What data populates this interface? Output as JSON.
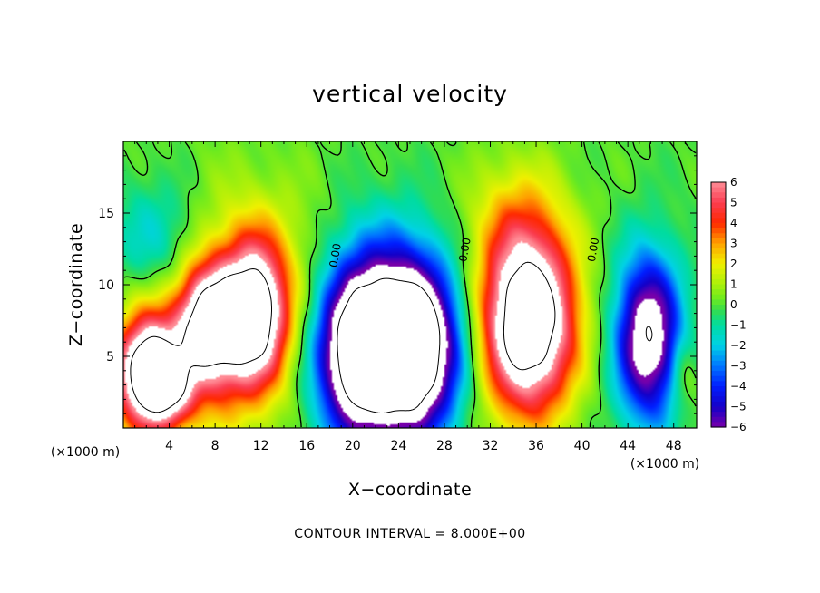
{
  "chart_data": {
    "type": "heatmap",
    "title": "vertical velocity",
    "xlabel": "X−coordinate",
    "ylabel": "Z−coordinate",
    "x_unit": "(×1000 m)",
    "x_unit_right": "(×1000 m)",
    "xlim": [
      0,
      50
    ],
    "ylim": [
      0,
      20
    ],
    "x_ticks": [
      4,
      8,
      12,
      16,
      20,
      24,
      28,
      32,
      36,
      40,
      44,
      48
    ],
    "x_tick_labels": [
      "4",
      "8",
      "12",
      "16",
      "20",
      "24",
      "28",
      "32",
      "36",
      "40",
      "44",
      "48"
    ],
    "y_ticks": [
      5,
      10,
      15
    ],
    "y_tick_labels": [
      "5",
      "10",
      "15"
    ],
    "colorbar": {
      "min": -6,
      "max": 6,
      "tick_values": [
        6,
        5,
        4,
        3,
        2,
        1,
        0,
        -1,
        -2,
        -3,
        -4,
        -5,
        -6
      ],
      "tick_labels": [
        "6",
        "5",
        "4",
        "3",
        "2",
        "1",
        "0",
        "−1",
        "−2",
        "−3",
        "−4",
        "−5",
        "−6"
      ]
    },
    "contour_interval_text": "CONTOUR INTERVAL = 8.000E+00",
    "contour_labels": [
      {
        "text": "0.00",
        "x": 18.8,
        "z": 12.0
      },
      {
        "text": "0.00",
        "x": 30.1,
        "z": 12.4
      },
      {
        "text": "0.00",
        "x": 41.3,
        "z": 12.4
      }
    ],
    "features": [
      {
        "sign": "positive",
        "x": 2.2,
        "z": 3.8,
        "sx": 1.8,
        "sz": 2.6,
        "w": 10
      },
      {
        "sign": "positive",
        "x": 4.5,
        "z": 2.5,
        "sx": 1.2,
        "sz": 1.6,
        "w": 3
      },
      {
        "sign": "positive",
        "x": 7.5,
        "z": 7.3,
        "sx": 1.9,
        "sz": 2.7,
        "w": 8
      },
      {
        "sign": "positive",
        "x": 11.5,
        "z": 8.0,
        "sx": 1.9,
        "sz": 3.4,
        "w": 8
      },
      {
        "sign": "positive",
        "x": 9.5,
        "z": 9.5,
        "sx": 6.0,
        "sz": 5.0,
        "w": 2.6
      },
      {
        "sign": "positive",
        "x": 6.0,
        "z": 3.0,
        "sx": 4.5,
        "sz": 3.0,
        "w": 1.8
      },
      {
        "sign": "negative",
        "x": 3.0,
        "z": 13.0,
        "sx": 3.0,
        "sz": 3.0,
        "w": 2.5
      },
      {
        "sign": "negative",
        "x": 22.5,
        "z": 6.0,
        "sx": 3.5,
        "sz": 4.6,
        "w": 10
      },
      {
        "sign": "negative",
        "x": 26.0,
        "z": 5.5,
        "sx": 2.5,
        "sz": 4.0,
        "w": 6
      },
      {
        "sign": "negative",
        "x": 20.0,
        "z": 5.0,
        "sx": 2.2,
        "sz": 4.0,
        "w": 4
      },
      {
        "sign": "positive",
        "x": 35.3,
        "z": 7.5,
        "sx": 2.8,
        "sz": 4.4,
        "w": 11
      },
      {
        "sign": "negative",
        "x": 45.8,
        "z": 6.3,
        "sx": 2.0,
        "sz": 4.0,
        "w": 8
      },
      {
        "sign": "positive",
        "x": 34.0,
        "z": 15.0,
        "sx": 3.0,
        "sz": 3.0,
        "w": 1.5
      },
      {
        "sign": "positive",
        "x": 48.8,
        "z": 3.8,
        "sx": 0.9,
        "sz": 1.8,
        "w": 1.8
      }
    ]
  }
}
